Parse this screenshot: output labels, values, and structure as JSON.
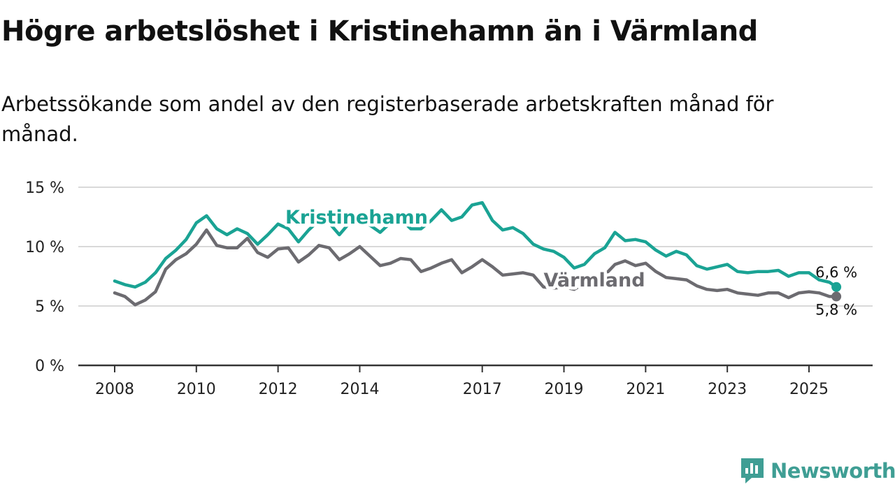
{
  "title": "Högre arbetslöshet i Kristinehamn än i Värmland",
  "subtitle": "Arbetssökande som andel av den registerbaserade arbetskraften månad för månad.",
  "brand": {
    "name": "Newsworthy",
    "icon": "chart-speech-bubble-icon",
    "color": "#3f9e94"
  },
  "chart_data": {
    "type": "line",
    "title": "Högre arbetslöshet i Kristinehamn än i Värmland",
    "xlabel": "",
    "ylabel": "",
    "xlim": [
      2007.8,
      2026.5
    ],
    "ylim": [
      0,
      15
    ],
    "grid": true,
    "x_ticks": [
      2008,
      2010,
      2012,
      2014,
      2017,
      2019,
      2021,
      2023,
      2025
    ],
    "x_tick_labels": [
      "2008",
      "2010",
      "2012",
      "2014",
      "2017",
      "2019",
      "2021",
      "2023",
      "2025"
    ],
    "y_ticks": [
      0,
      5,
      10,
      15
    ],
    "y_tick_labels": [
      "0 %",
      "5 %",
      "10 %",
      "15 %"
    ],
    "x": [
      2008.0,
      2008.25,
      2008.5,
      2008.75,
      2009.0,
      2009.25,
      2009.5,
      2009.75,
      2010.0,
      2010.25,
      2010.5,
      2010.75,
      2011.0,
      2011.25,
      2011.5,
      2011.75,
      2012.0,
      2012.25,
      2012.5,
      2012.75,
      2013.0,
      2013.25,
      2013.5,
      2013.75,
      2014.0,
      2014.25,
      2014.5,
      2014.75,
      2015.0,
      2015.25,
      2015.5,
      2015.75,
      2016.0,
      2016.25,
      2016.5,
      2016.75,
      2017.0,
      2017.25,
      2017.5,
      2017.75,
      2018.0,
      2018.25,
      2018.5,
      2018.75,
      2019.0,
      2019.25,
      2019.5,
      2019.75,
      2020.0,
      2020.25,
      2020.5,
      2020.75,
      2021.0,
      2021.25,
      2021.5,
      2021.75,
      2022.0,
      2022.25,
      2022.5,
      2022.75,
      2023.0,
      2023.25,
      2023.5,
      2023.75,
      2024.0,
      2024.25,
      2024.5,
      2024.75,
      2025.0,
      2025.25,
      2025.5,
      2025.67
    ],
    "series": [
      {
        "name": "Kristinehamn",
        "color": "#1aa394",
        "end_label": "6,6 %",
        "values": [
          7.1,
          6.8,
          6.6,
          7.0,
          7.8,
          9.0,
          9.7,
          10.6,
          12.0,
          12.6,
          11.5,
          11.0,
          11.5,
          11.1,
          10.2,
          11.0,
          11.9,
          11.5,
          10.4,
          11.4,
          12.2,
          12.0,
          11.0,
          12.0,
          12.3,
          11.8,
          11.2,
          12.0,
          12.3,
          11.5,
          11.5,
          12.2,
          13.1,
          12.2,
          12.5,
          13.5,
          13.7,
          12.2,
          11.4,
          11.6,
          11.1,
          10.2,
          9.8,
          9.6,
          9.1,
          8.2,
          8.5,
          9.4,
          9.9,
          11.2,
          10.5,
          10.6,
          10.4,
          9.7,
          9.2,
          9.6,
          9.3,
          8.4,
          8.1,
          8.3,
          8.5,
          7.9,
          7.8,
          7.9,
          7.9,
          8.0,
          7.5,
          7.8,
          7.8,
          7.2,
          7.0,
          6.6
        ]
      },
      {
        "name": "Värmland",
        "color": "#6c6b70",
        "end_label": "5,8 %",
        "values": [
          6.1,
          5.8,
          5.1,
          5.5,
          6.2,
          8.1,
          8.9,
          9.4,
          10.2,
          11.4,
          10.1,
          9.9,
          9.9,
          10.7,
          9.5,
          9.1,
          9.8,
          9.9,
          8.7,
          9.3,
          10.1,
          9.9,
          8.9,
          9.4,
          10.0,
          9.2,
          8.4,
          8.6,
          9.0,
          8.9,
          7.9,
          8.2,
          8.6,
          8.9,
          7.8,
          8.3,
          8.9,
          8.3,
          7.6,
          7.7,
          7.8,
          7.6,
          6.6,
          6.5,
          6.6,
          6.4,
          6.9,
          7.2,
          7.6,
          8.5,
          8.8,
          8.4,
          8.6,
          7.9,
          7.4,
          7.3,
          7.2,
          6.7,
          6.4,
          6.3,
          6.4,
          6.1,
          6.0,
          5.9,
          6.1,
          6.1,
          5.7,
          6.1,
          6.2,
          6.1,
          5.8,
          5.8
        ]
      }
    ]
  }
}
